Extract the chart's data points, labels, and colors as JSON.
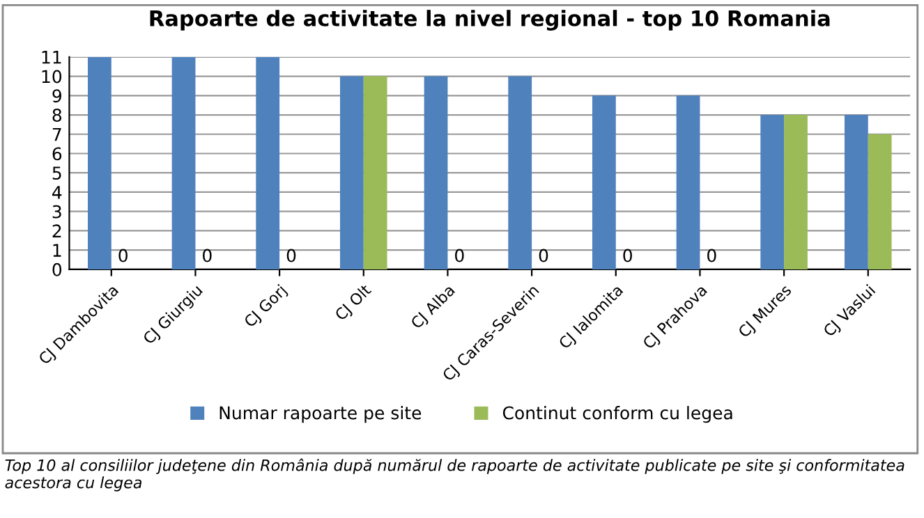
{
  "chart_data": {
    "type": "bar",
    "title": "Rapoarte de activitate la nivel regional - top 10 Romania",
    "categories": [
      "CJ Dambovita",
      "CJ Giurgiu",
      "CJ Gorj",
      "CJ Olt",
      "CJ Alba",
      "CJ Caras-Severin",
      "CJ Ialomita",
      "CJ Prahova",
      "CJ Mures",
      "CJ Vaslui"
    ],
    "series": [
      {
        "name": "Numar rapoarte pe site",
        "color": "#4f81bd",
        "values": [
          11,
          11,
          11,
          10,
          10,
          10,
          9,
          9,
          8,
          8
        ]
      },
      {
        "name": "Continut conform cu legea",
        "color": "#9bbb59",
        "values": [
          0,
          0,
          0,
          10,
          0,
          0,
          0,
          0,
          8,
          7
        ],
        "value_labels": [
          "0",
          "0",
          "0",
          null,
          "0",
          "0",
          "0",
          "0",
          null,
          null
        ]
      }
    ],
    "ylim": [
      0,
      11
    ],
    "yticks": [
      0,
      1,
      2,
      3,
      4,
      5,
      6,
      7,
      8,
      9,
      10,
      11
    ],
    "grid": "y",
    "legend": "bottom",
    "annotations": [
      "Top 10 al consiliilor judeţene din România după numărul de rapoarte de activitate publicate pe site şi conformitatea acestora cu legea"
    ]
  }
}
